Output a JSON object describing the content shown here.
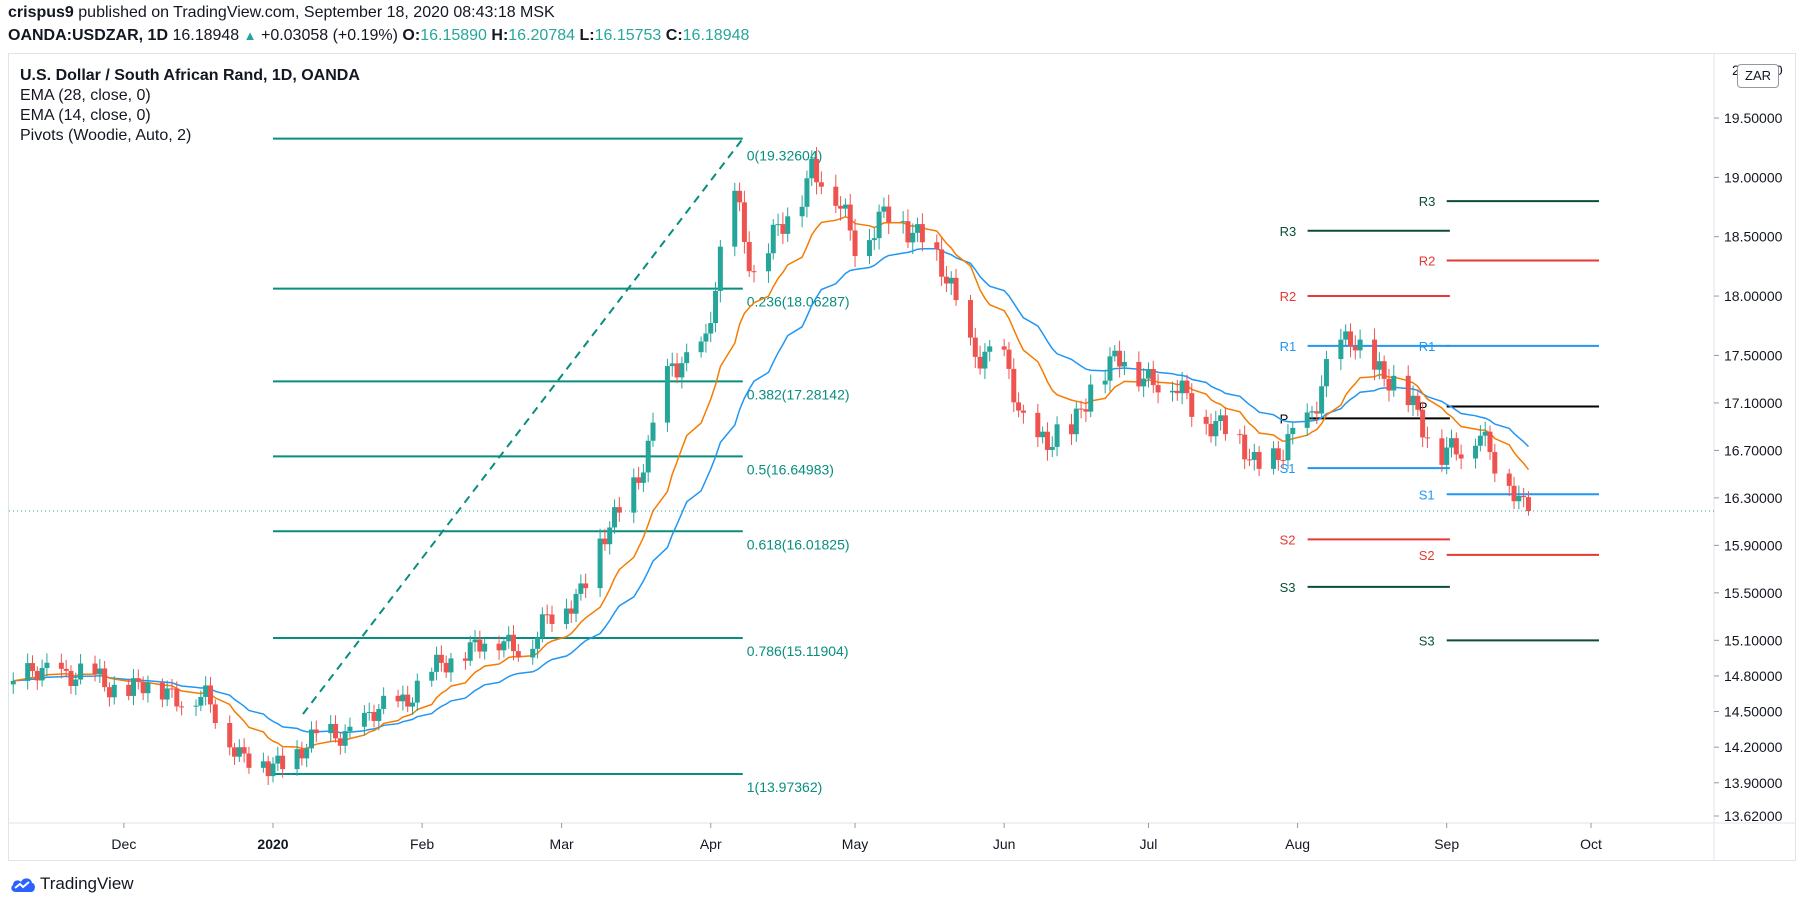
{
  "header": {
    "author": "crispus9",
    "published": "published on TradingView.com, September 18, 2020 08:43:18 MSK",
    "symbol": "OANDA:USDZAR, 1D",
    "last": "16.18948",
    "change": "+0.03058 (+0.19%)",
    "o_label": "O:",
    "o": "16.15890",
    "h_label": "H:",
    "h": "16.20784",
    "l_label": "L:",
    "l": "16.15753",
    "c_label": "C:",
    "c": "16.18948"
  },
  "legend": {
    "title": "U.S. Dollar / South African Rand, 1D, OANDA",
    "ema28": "EMA (28, close, 0)",
    "ema14": "EMA (14, close, 0)",
    "pivots": "Pivots (Woodie, Auto, 2)"
  },
  "currency_badge": "ZAR",
  "brand": "TradingView",
  "colors": {
    "up": "#26a69a",
    "down": "#ef5350",
    "ema14": "#f57c00",
    "ema28": "#2196f3",
    "fib": "#088e7e",
    "r3s3": "#0b4f38",
    "r2s2": "#e53935",
    "r1s1": "#2196f3",
    "pivot": "#000000"
  },
  "chart_data": {
    "type": "candlestick",
    "ylim": [
      13.5,
      20.0
    ],
    "y_ticks": [
      "13.62000",
      "13.90000",
      "14.20000",
      "14.50000",
      "14.80000",
      "15.10000",
      "15.50000",
      "15.90000",
      "16.30000",
      "16.70000",
      "17.10000",
      "17.50000",
      "18.00000",
      "18.50000",
      "19.00000",
      "19.50000"
    ],
    "y_tick_values": [
      13.62,
      13.9,
      14.2,
      14.5,
      14.8,
      15.1,
      15.5,
      15.9,
      16.3,
      16.7,
      17.1,
      17.5,
      18.0,
      18.5,
      19.0,
      19.5
    ],
    "top_tick_partial": "20.0000",
    "x_ticks": [
      {
        "label": "Dec",
        "date": "2019-12-01"
      },
      {
        "label": "2020",
        "date": "2020-01-01",
        "bold": true
      },
      {
        "label": "Feb",
        "date": "2020-02-01"
      },
      {
        "label": "Mar",
        "date": "2020-03-01"
      },
      {
        "label": "Apr",
        "date": "2020-04-01"
      },
      {
        "label": "May",
        "date": "2020-05-01"
      },
      {
        "label": "Jun",
        "date": "2020-06-01"
      },
      {
        "label": "Jul",
        "date": "2020-07-01"
      },
      {
        "label": "Aug",
        "date": "2020-08-01"
      },
      {
        "label": "Sep",
        "date": "2020-09-01"
      },
      {
        "label": "Oct",
        "date": "2020-10-01"
      }
    ],
    "last_price": 16.18948,
    "closes_keypoints": [
      [
        "2019-11-08",
        14.75
      ],
      [
        "2019-11-18",
        14.85
      ],
      [
        "2019-11-28",
        14.72
      ],
      [
        "2019-12-10",
        14.68
      ],
      [
        "2019-12-18",
        14.58
      ],
      [
        "2019-12-26",
        14.12
      ],
      [
        "2019-12-31",
        14.0
      ],
      [
        "2020-01-08",
        14.22
      ],
      [
        "2020-01-20",
        14.4
      ],
      [
        "2020-01-31",
        14.7
      ],
      [
        "2020-02-10",
        15.05
      ],
      [
        "2020-02-24",
        15.1
      ],
      [
        "2020-03-05",
        15.55
      ],
      [
        "2020-03-12",
        16.1
      ],
      [
        "2020-03-19",
        16.7
      ],
      [
        "2020-03-24",
        17.4
      ],
      [
        "2020-03-31",
        17.6
      ],
      [
        "2020-04-06",
        18.9
      ],
      [
        "2020-04-10",
        18.2
      ],
      [
        "2020-04-15",
        18.5
      ],
      [
        "2020-04-22",
        19.1
      ],
      [
        "2020-04-27",
        18.8
      ],
      [
        "2020-05-01",
        18.5
      ],
      [
        "2020-05-08",
        18.65
      ],
      [
        "2020-05-15",
        18.55
      ],
      [
        "2020-05-20",
        18.1
      ],
      [
        "2020-05-25",
        17.6
      ],
      [
        "2020-06-01",
        17.4
      ],
      [
        "2020-06-05",
        16.95
      ],
      [
        "2020-06-10",
        16.75
      ],
      [
        "2020-06-15",
        16.85
      ],
      [
        "2020-06-19",
        17.3
      ],
      [
        "2020-06-26",
        17.45
      ],
      [
        "2020-07-03",
        17.3
      ],
      [
        "2020-07-10",
        17.1
      ],
      [
        "2020-07-17",
        16.85
      ],
      [
        "2020-07-24",
        16.6
      ],
      [
        "2020-07-29",
        16.65
      ],
      [
        "2020-08-03",
        16.95
      ],
      [
        "2020-08-07",
        17.4
      ],
      [
        "2020-08-12",
        17.6
      ],
      [
        "2020-08-17",
        17.45
      ],
      [
        "2020-08-21",
        17.25
      ],
      [
        "2020-08-26",
        17.0
      ],
      [
        "2020-08-31",
        16.7
      ],
      [
        "2020-09-04",
        16.65
      ],
      [
        "2020-09-08",
        16.9
      ],
      [
        "2020-09-11",
        16.65
      ],
      [
        "2020-09-14",
        16.4
      ],
      [
        "2020-09-16",
        16.2
      ],
      [
        "2020-09-18",
        16.19
      ]
    ],
    "fibonacci": {
      "levels": [
        {
          "label": "0(19.32604)",
          "value": 19.32604
        },
        {
          "label": "0.236(18.06287)",
          "value": 18.06287
        },
        {
          "label": "0.382(17.28142)",
          "value": 17.28142
        },
        {
          "label": "0.5(16.64983)",
          "value": 16.64983
        },
        {
          "label": "0.618(16.01825)",
          "value": 16.01825
        },
        {
          "label": "0.786(15.11904)",
          "value": 15.11904
        },
        {
          "label": "1(13.97362)",
          "value": 13.97362
        }
      ],
      "start_date": "2020-01-01",
      "end_date": "2020-04-06"
    },
    "pivots": {
      "period1": {
        "from": "2020-08-01",
        "to": "2020-08-31",
        "levels": [
          {
            "name": "R3",
            "value": 18.55
          },
          {
            "name": "R2",
            "value": 18.0
          },
          {
            "name": "R1",
            "value": 17.58
          },
          {
            "name": "P",
            "value": 16.97
          },
          {
            "name": "S1",
            "value": 16.55
          },
          {
            "name": "S2",
            "value": 15.95
          },
          {
            "name": "S3",
            "value": 15.55
          }
        ]
      },
      "period2": {
        "from": "2020-09-01",
        "to": "2020-10-01",
        "levels": [
          {
            "name": "R3",
            "value": 18.8
          },
          {
            "name": "R2",
            "value": 18.3
          },
          {
            "name": "R1",
            "value": 17.58
          },
          {
            "name": "P",
            "value": 17.07
          },
          {
            "name": "S1",
            "value": 16.33
          },
          {
            "name": "S2",
            "value": 15.82
          },
          {
            "name": "S3",
            "value": 15.1
          }
        ]
      }
    }
  }
}
